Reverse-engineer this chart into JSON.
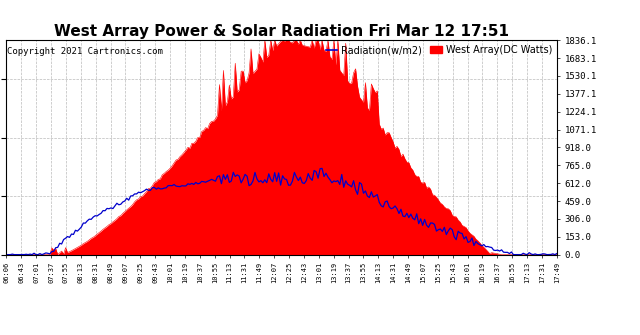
{
  "title": "West Array Power & Solar Radiation Fri Mar 12 17:51",
  "copyright": "Copyright 2021 Cartronics.com",
  "legend_radiation": "Radiation(w/m2)",
  "legend_west": "West Array(DC Watts)",
  "ylabel_right_ticks": [
    0.0,
    153.0,
    306.0,
    459.0,
    612.0,
    765.0,
    918.0,
    1071.1,
    1224.1,
    1377.1,
    1530.1,
    1683.1,
    1836.1
  ],
  "ymax": 1836.1,
  "ymin": 0.0,
  "background_color": "#ffffff",
  "plot_bg_color": "#ffffff",
  "radiation_color": "#ff0000",
  "west_array_color": "#0000cc",
  "grid_color": "#bbbbbb",
  "title_fontsize": 11,
  "copyright_fontsize": 6.5,
  "n_points": 280
}
